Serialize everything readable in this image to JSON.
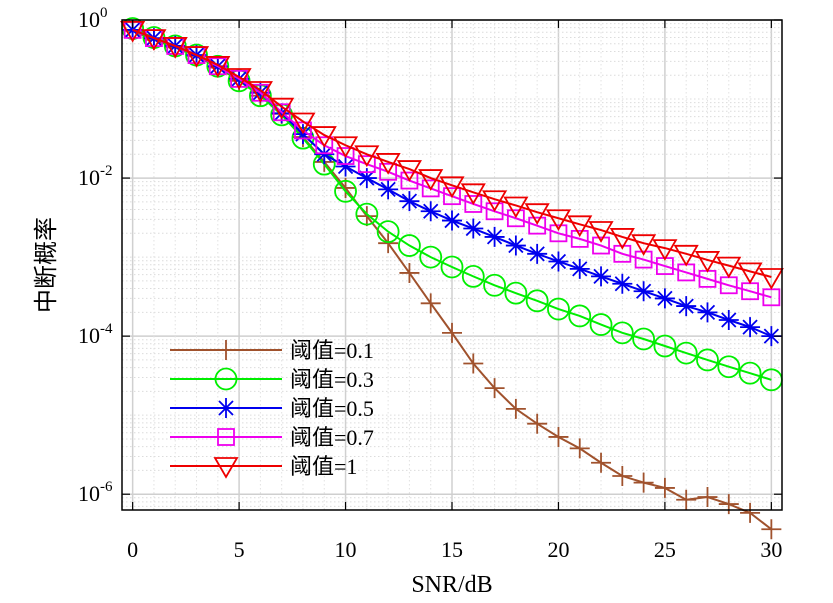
{
  "chart_data": {
    "type": "line",
    "title": "",
    "xlabel": "SNR/dB",
    "ylabel": "中断概率",
    "xlim": [
      -0.5,
      30.5
    ],
    "ylim_log10": [
      -6.2,
      0
    ],
    "yscale": "log",
    "grid": true,
    "legend_position": "bottom-left",
    "x_ticks": [
      0,
      5,
      10,
      15,
      20,
      25,
      30
    ],
    "y_ticks": [
      {
        "base": "10",
        "exp": "0",
        "value": 1
      },
      {
        "base": "10",
        "exp": "-2",
        "value": 0.01
      },
      {
        "base": "10",
        "exp": "-4",
        "value": 0.0001
      },
      {
        "base": "10",
        "exp": "-6",
        "value": 1e-06
      }
    ],
    "x": [
      0,
      1,
      2,
      3,
      4,
      5,
      6,
      7,
      8,
      9,
      10,
      11,
      12,
      13,
      14,
      15,
      16,
      17,
      18,
      19,
      20,
      21,
      22,
      23,
      24,
      25,
      26,
      27,
      28,
      29,
      30
    ],
    "series": [
      {
        "name": "阈值=0.1",
        "color": "#a0522d",
        "marker": "plus",
        "values": [
          0.73,
          0.56,
          0.45,
          0.35,
          0.25,
          0.17,
          0.11,
          0.065,
          0.033,
          0.016,
          0.0075,
          0.0033,
          0.0015,
          0.00063,
          0.00026,
          0.00011,
          4.5e-05,
          2.2e-05,
          1.2e-05,
          7.8e-06,
          5.3e-06,
          3.8e-06,
          2.5e-06,
          1.7e-06,
          1.4e-06,
          1.2e-06,
          8.5e-07,
          9.2e-07,
          7.5e-07,
          5.8e-07,
          3.6e-07
        ]
      },
      {
        "name": "阈值=0.3",
        "color": "#00ee00",
        "marker": "circle",
        "values": [
          0.78,
          0.6,
          0.47,
          0.36,
          0.26,
          0.17,
          0.11,
          0.063,
          0.032,
          0.015,
          0.0068,
          0.0035,
          0.0021,
          0.0014,
          0.001,
          0.00075,
          0.00057,
          0.00044,
          0.00035,
          0.00028,
          0.00022,
          0.00018,
          0.00014,
          0.00011,
          9.2e-05,
          7.5e-05,
          6.1e-05,
          5e-05,
          4.1e-05,
          3.4e-05,
          2.8e-05
        ]
      },
      {
        "name": "阈值=0.5",
        "color": "#0000ee",
        "marker": "asterisk",
        "values": [
          0.75,
          0.59,
          0.47,
          0.36,
          0.26,
          0.18,
          0.12,
          0.066,
          0.036,
          0.02,
          0.014,
          0.01,
          0.0072,
          0.0051,
          0.0038,
          0.0029,
          0.0023,
          0.0018,
          0.0014,
          0.0011,
          0.00088,
          0.00071,
          0.00057,
          0.00046,
          0.00037,
          0.0003,
          0.00024,
          0.0002,
          0.00016,
          0.00013,
          0.0001
        ]
      },
      {
        "name": "阈值=0.7",
        "color": "#ee00ee",
        "marker": "square",
        "values": [
          0.75,
          0.59,
          0.47,
          0.36,
          0.26,
          0.18,
          0.12,
          0.068,
          0.04,
          0.026,
          0.019,
          0.015,
          0.012,
          0.0093,
          0.0074,
          0.0059,
          0.0047,
          0.0038,
          0.0031,
          0.0025,
          0.002,
          0.0017,
          0.0014,
          0.0011,
          0.00093,
          0.00077,
          0.00064,
          0.00053,
          0.00044,
          0.00037,
          0.00031
        ]
      },
      {
        "name": "阈值=1",
        "color": "#ee0000",
        "marker": "triangle-down",
        "values": [
          0.75,
          0.59,
          0.47,
          0.36,
          0.27,
          0.19,
          0.13,
          0.08,
          0.052,
          0.035,
          0.026,
          0.02,
          0.016,
          0.013,
          0.01,
          0.0081,
          0.0066,
          0.0054,
          0.0045,
          0.0037,
          0.0031,
          0.0026,
          0.0022,
          0.0018,
          0.0015,
          0.0013,
          0.0011,
          0.00092,
          0.00078,
          0.00066,
          0.00056
        ]
      }
    ]
  }
}
